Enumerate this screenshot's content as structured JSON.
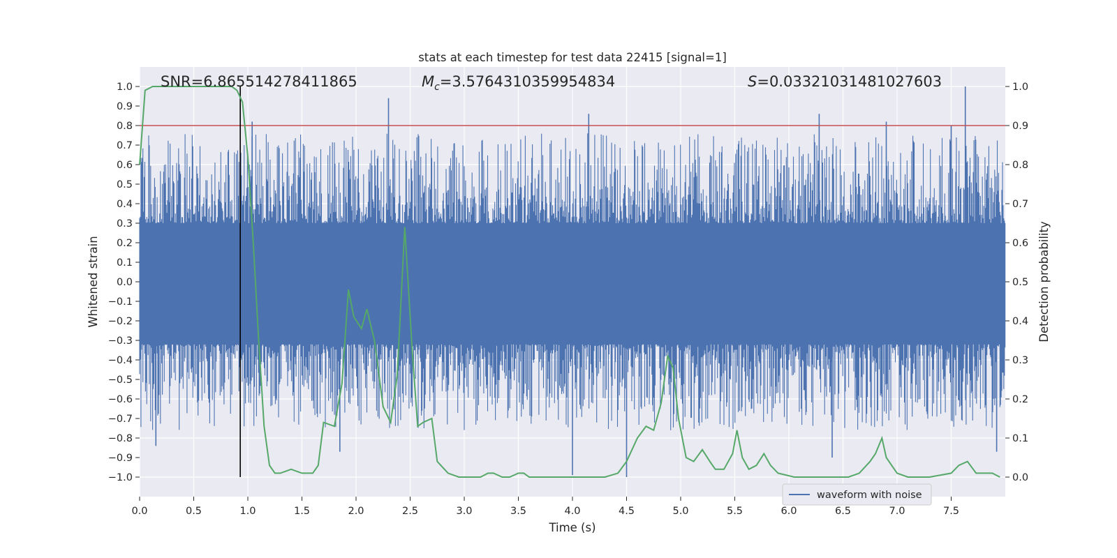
{
  "chart_data": {
    "type": "line",
    "title": "stats at each timestep for test data 22415 [signal=1]",
    "xlabel": "Time (s)",
    "ylabel": "Whitened strain",
    "y2label": "Detection probability",
    "xlim": [
      0.0,
      8.0
    ],
    "ylim": [
      -1.1,
      1.1
    ],
    "y2lim": [
      -0.05,
      1.05
    ],
    "xticks": [
      0.0,
      0.5,
      1.0,
      1.5,
      2.0,
      2.5,
      3.0,
      3.5,
      4.0,
      4.5,
      5.0,
      5.5,
      6.0,
      6.5,
      7.0,
      7.5
    ],
    "xtick_labels": [
      "0.0",
      "0.5",
      "1.0",
      "1.5",
      "2.0",
      "2.5",
      "3.0",
      "3.5",
      "4.0",
      "4.5",
      "5.0",
      "5.5",
      "6.0",
      "6.5",
      "7.0",
      "7.5"
    ],
    "yticks": [
      1.0,
      0.9,
      0.8,
      0.7,
      0.6,
      0.5,
      0.4,
      0.3,
      0.2,
      0.1,
      0.0,
      -0.1,
      -0.2,
      -0.3,
      -0.4,
      -0.5,
      -0.6,
      -0.7,
      -0.8,
      -0.9,
      -1.0
    ],
    "ytick_labels": [
      "1.0",
      "0.9",
      "0.8",
      "0.7",
      "0.6",
      "0.5",
      "0.4",
      "0.3",
      "0.2",
      "0.1",
      "0.0",
      "−0.1",
      "−0.2",
      "−0.3",
      "−0.4",
      "−0.5",
      "−0.6",
      "−0.7",
      "−0.8",
      "−0.9",
      "−1.0"
    ],
    "y2ticks": [
      1.0,
      0.9,
      0.8,
      0.7,
      0.6,
      0.5,
      0.4,
      0.3,
      0.2,
      0.1,
      0.0
    ],
    "y2tick_labels": [
      "1.0",
      "0.9",
      "0.8",
      "0.7",
      "0.6",
      "0.5",
      "0.4",
      "0.3",
      "0.2",
      "0.1",
      "0.0"
    ],
    "grid": true,
    "legend": {
      "placement": "lower-right",
      "entries": [
        {
          "label": "waveform with noise",
          "color": "#4c72b0"
        }
      ]
    },
    "annotations": {
      "snr": {
        "text": "SNR=6.865514278411865"
      },
      "mc": {
        "prefix": "M",
        "sub": "c",
        "text": "=3.5764310359954834"
      },
      "s": {
        "prefix": "S",
        "text": "=0.03321031481027603"
      }
    },
    "threshold": {
      "value": 0.8,
      "color": "#c44e52"
    },
    "marker_time": 0.93,
    "waveform": {
      "color": "#4c72b0",
      "note_envelope_max": 1.0,
      "prominent_positive_spikes": [
        {
          "t": 1.04,
          "v": 0.82
        },
        {
          "t": 2.3,
          "v": 0.94
        },
        {
          "t": 4.15,
          "v": 0.86
        },
        {
          "t": 6.28,
          "v": 0.86
        },
        {
          "t": 6.9,
          "v": 0.82
        },
        {
          "t": 7.15,
          "v": 0.72
        },
        {
          "t": 7.63,
          "v": 1.0
        },
        {
          "t": 7.5,
          "v": 0.8
        }
      ],
      "prominent_negative_spikes": [
        {
          "t": 0.15,
          "v": -0.84
        },
        {
          "t": 1.85,
          "v": -0.87
        },
        {
          "t": 4.0,
          "v": -0.99
        },
        {
          "t": 4.5,
          "v": -1.0
        },
        {
          "t": 6.4,
          "v": -0.9
        },
        {
          "t": 7.92,
          "v": -0.87
        }
      ]
    },
    "series": [
      {
        "name": "detection probability",
        "axis": "right",
        "color": "#55a868",
        "x": [
          0.0,
          0.05,
          0.12,
          0.2,
          0.3,
          0.45,
          0.6,
          0.75,
          0.85,
          0.9,
          0.95,
          1.0,
          1.05,
          1.1,
          1.15,
          1.2,
          1.25,
          1.3,
          1.4,
          1.5,
          1.6,
          1.65,
          1.7,
          1.8,
          1.87,
          1.93,
          1.98,
          2.05,
          2.1,
          2.17,
          2.25,
          2.32,
          2.38,
          2.45,
          2.52,
          2.57,
          2.62,
          2.7,
          2.75,
          2.85,
          2.95,
          3.05,
          3.15,
          3.22,
          3.27,
          3.35,
          3.42,
          3.5,
          3.55,
          3.6,
          3.8,
          4.0,
          4.2,
          4.3,
          4.42,
          4.5,
          4.6,
          4.68,
          4.75,
          4.82,
          4.88,
          4.93,
          4.98,
          5.05,
          5.12,
          5.2,
          5.27,
          5.32,
          5.4,
          5.48,
          5.52,
          5.57,
          5.63,
          5.7,
          5.77,
          5.83,
          5.9,
          6.05,
          6.2,
          6.4,
          6.55,
          6.65,
          6.75,
          6.8,
          6.86,
          6.9,
          7.0,
          7.1,
          7.3,
          7.5,
          7.57,
          7.65,
          7.73,
          7.8,
          7.88,
          7.95
        ],
        "values": [
          0.8,
          0.99,
          1.0,
          1.0,
          1.0,
          1.0,
          1.0,
          1.0,
          1.0,
          0.99,
          0.96,
          0.82,
          0.6,
          0.35,
          0.13,
          0.03,
          0.01,
          0.01,
          0.02,
          0.01,
          0.01,
          0.03,
          0.14,
          0.13,
          0.24,
          0.48,
          0.41,
          0.38,
          0.43,
          0.35,
          0.18,
          0.14,
          0.26,
          0.64,
          0.32,
          0.13,
          0.14,
          0.15,
          0.04,
          0.01,
          0.0,
          0.0,
          0.0,
          0.01,
          0.01,
          0.0,
          0.0,
          0.01,
          0.01,
          0.0,
          0.0,
          0.0,
          0.0,
          0.0,
          0.01,
          0.04,
          0.1,
          0.13,
          0.12,
          0.19,
          0.31,
          0.28,
          0.15,
          0.05,
          0.04,
          0.07,
          0.04,
          0.02,
          0.02,
          0.06,
          0.12,
          0.05,
          0.02,
          0.03,
          0.06,
          0.03,
          0.01,
          0.0,
          0.0,
          0.0,
          0.0,
          0.01,
          0.04,
          0.06,
          0.1,
          0.05,
          0.01,
          0.0,
          0.0,
          0.01,
          0.03,
          0.04,
          0.01,
          0.01,
          0.01,
          0.0
        ]
      }
    ]
  }
}
